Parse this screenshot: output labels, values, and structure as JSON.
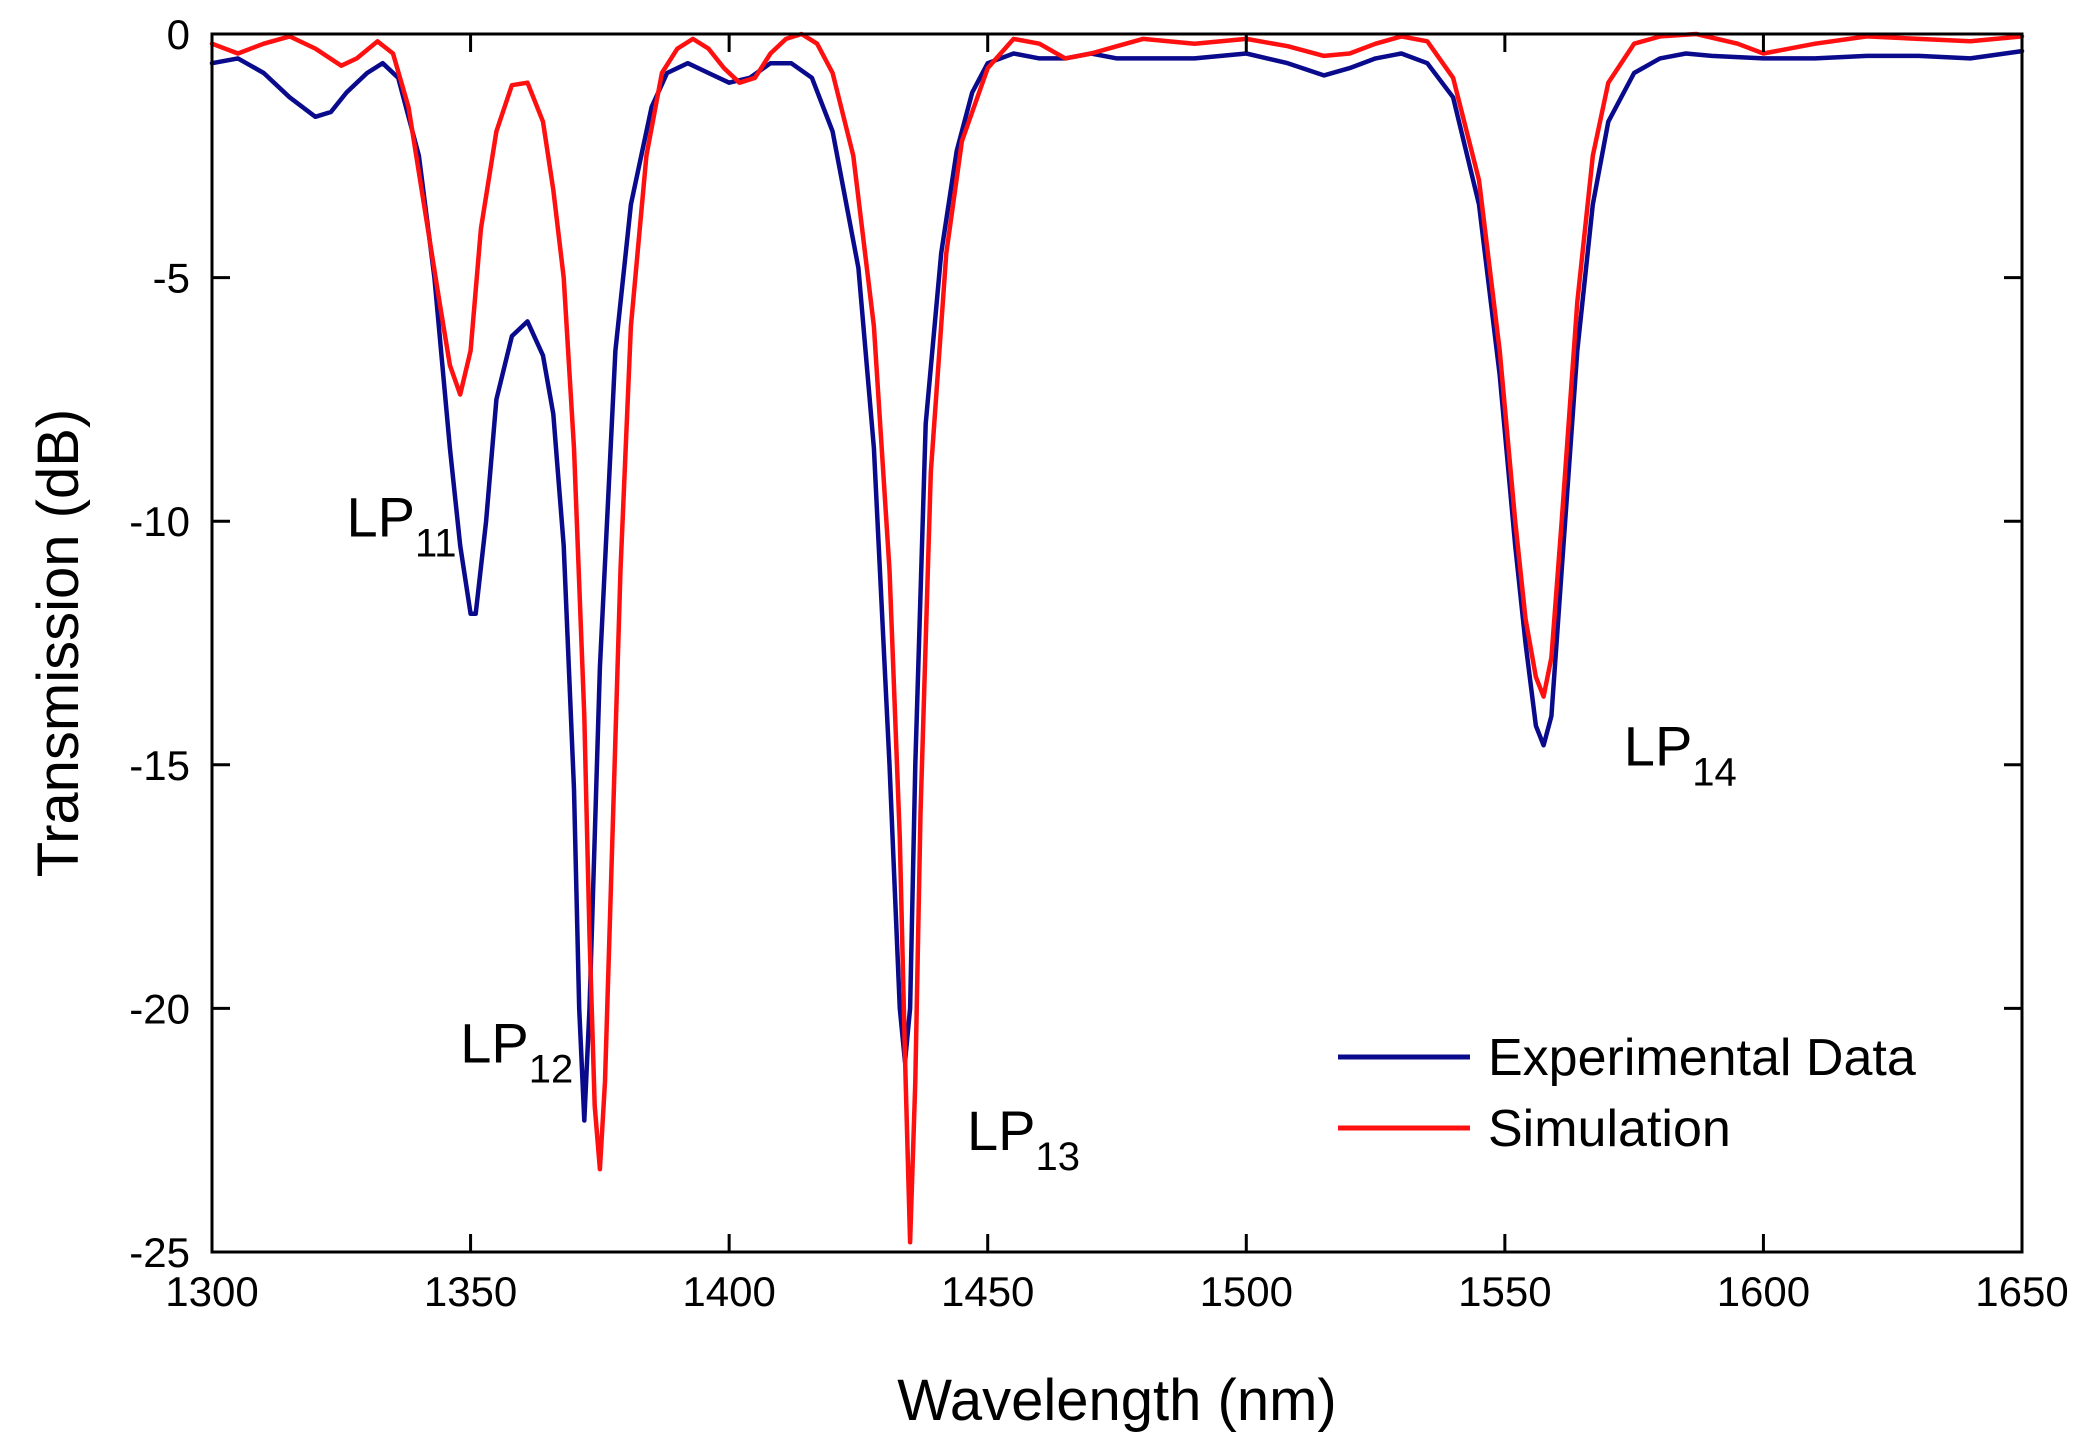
{
  "chart_data": {
    "type": "line",
    "title": "",
    "xlabel": "Wavelength (nm)",
    "ylabel": "Transmission (dB)",
    "xlim": [
      1300,
      1650
    ],
    "ylim": [
      -25,
      0
    ],
    "xticks": [
      1300,
      1350,
      1400,
      1450,
      1500,
      1550,
      1600,
      1650
    ],
    "yticks": [
      0,
      -5,
      -10,
      -15,
      -20,
      -25
    ],
    "xtick_labels": [
      "1300",
      "1350",
      "1400",
      "1450",
      "1500",
      "1550",
      "1600",
      "1650"
    ],
    "ytick_labels": [
      "0",
      "-5",
      "-10",
      "-15",
      "-20",
      "-25"
    ],
    "grid": false,
    "legend_position": "bottom-right",
    "series": [
      {
        "name": "Experimental Data",
        "color": "#0a0a8c",
        "x": [
          1300,
          1305,
          1310,
          1315,
          1320,
          1323,
          1326,
          1330,
          1333,
          1336,
          1340,
          1343,
          1346,
          1348,
          1350,
          1351,
          1353,
          1355,
          1358,
          1361,
          1364,
          1366,
          1368,
          1370,
          1371,
          1372,
          1373,
          1375,
          1378,
          1381,
          1385,
          1388,
          1392,
          1396,
          1400,
          1404,
          1408,
          1412,
          1416,
          1420,
          1425,
          1428,
          1431,
          1433,
          1434,
          1435,
          1436,
          1438,
          1441,
          1444,
          1447,
          1450,
          1455,
          1460,
          1465,
          1470,
          1475,
          1480,
          1490,
          1500,
          1508,
          1515,
          1520,
          1525,
          1530,
          1535,
          1540,
          1545,
          1549,
          1552,
          1554,
          1556,
          1557.5,
          1559,
          1561,
          1564,
          1567,
          1570,
          1575,
          1580,
          1585,
          1590,
          1600,
          1610,
          1620,
          1630,
          1640,
          1650
        ],
        "y": [
          -0.6,
          -0.5,
          -0.8,
          -1.3,
          -1.7,
          -1.6,
          -1.2,
          -0.8,
          -0.6,
          -0.9,
          -2.5,
          -5.0,
          -8.5,
          -10.5,
          -11.9,
          -11.9,
          -10.0,
          -7.5,
          -6.2,
          -5.9,
          -6.6,
          -7.8,
          -10.5,
          -15.5,
          -20.0,
          -22.3,
          -20.0,
          -13.0,
          -6.5,
          -3.5,
          -1.5,
          -0.8,
          -0.6,
          -0.8,
          -1.0,
          -0.9,
          -0.6,
          -0.6,
          -0.9,
          -2.0,
          -4.8,
          -8.5,
          -15.0,
          -20.0,
          -21.1,
          -20.0,
          -15.0,
          -8.0,
          -4.5,
          -2.4,
          -1.2,
          -0.6,
          -0.4,
          -0.5,
          -0.5,
          -0.4,
          -0.5,
          -0.5,
          -0.5,
          -0.4,
          -0.6,
          -0.85,
          -0.7,
          -0.5,
          -0.4,
          -0.6,
          -1.3,
          -3.5,
          -7.0,
          -10.5,
          -12.5,
          -14.2,
          -14.6,
          -14.0,
          -11.0,
          -6.5,
          -3.5,
          -1.8,
          -0.8,
          -0.5,
          -0.4,
          -0.45,
          -0.5,
          -0.5,
          -0.45,
          -0.45,
          -0.5,
          -0.35
        ]
      },
      {
        "name": "Simulation",
        "color": "#ff1010",
        "x": [
          1300,
          1305,
          1310,
          1315,
          1320,
          1325,
          1328,
          1332,
          1335,
          1338,
          1341,
          1344,
          1346,
          1348,
          1350,
          1352,
          1355,
          1358,
          1361,
          1364,
          1366,
          1368,
          1370,
          1372,
          1373,
          1374,
          1375,
          1376,
          1377,
          1379,
          1381,
          1384,
          1387,
          1390,
          1393,
          1396,
          1399,
          1402,
          1405,
          1408,
          1411,
          1414,
          1417,
          1420,
          1424,
          1428,
          1431,
          1433,
          1434,
          1435,
          1436,
          1437,
          1439,
          1442,
          1445,
          1450,
          1455,
          1460,
          1465,
          1470,
          1475,
          1480,
          1490,
          1500,
          1508,
          1515,
          1520,
          1525,
          1530,
          1535,
          1540,
          1545,
          1549,
          1552,
          1554,
          1556,
          1557.5,
          1559,
          1561,
          1564,
          1567,
          1570,
          1575,
          1580,
          1587,
          1595,
          1600,
          1610,
          1620,
          1630,
          1640,
          1650
        ],
        "y": [
          -0.2,
          -0.4,
          -0.2,
          -0.05,
          -0.3,
          -0.65,
          -0.5,
          -0.15,
          -0.4,
          -1.5,
          -3.5,
          -5.5,
          -6.8,
          -7.4,
          -6.5,
          -4.0,
          -2.0,
          -1.05,
          -1.0,
          -1.8,
          -3.2,
          -5.0,
          -8.5,
          -14.0,
          -18.5,
          -22.0,
          -23.3,
          -21.5,
          -18.0,
          -11.0,
          -6.0,
          -2.5,
          -0.8,
          -0.3,
          -0.1,
          -0.3,
          -0.7,
          -1.0,
          -0.9,
          -0.4,
          -0.1,
          0.0,
          -0.2,
          -0.8,
          -2.5,
          -6.0,
          -11.0,
          -16.5,
          -21.0,
          -24.8,
          -21.5,
          -16.0,
          -9.0,
          -4.5,
          -2.2,
          -0.7,
          -0.1,
          -0.2,
          -0.5,
          -0.4,
          -0.25,
          -0.1,
          -0.2,
          -0.1,
          -0.25,
          -0.45,
          -0.4,
          -0.2,
          -0.05,
          -0.15,
          -0.9,
          -3.0,
          -6.5,
          -10.0,
          -12.0,
          -13.2,
          -13.6,
          -12.8,
          -10.0,
          -5.5,
          -2.5,
          -1.0,
          -0.2,
          -0.05,
          0.0,
          -0.2,
          -0.4,
          -0.2,
          -0.05,
          -0.1,
          -0.15,
          -0.05
        ]
      }
    ],
    "annotations": [
      {
        "base": "LP",
        "sub": "11",
        "x": 1326,
        "y": -9.9
      },
      {
        "base": "LP",
        "sub": "12",
        "x": 1348,
        "y": -20.7
      },
      {
        "base": "LP",
        "sub": "13",
        "x": 1446,
        "y": -22.5
      },
      {
        "base": "LP",
        "sub": "14",
        "x": 1573,
        "y": -14.6
      }
    ]
  }
}
